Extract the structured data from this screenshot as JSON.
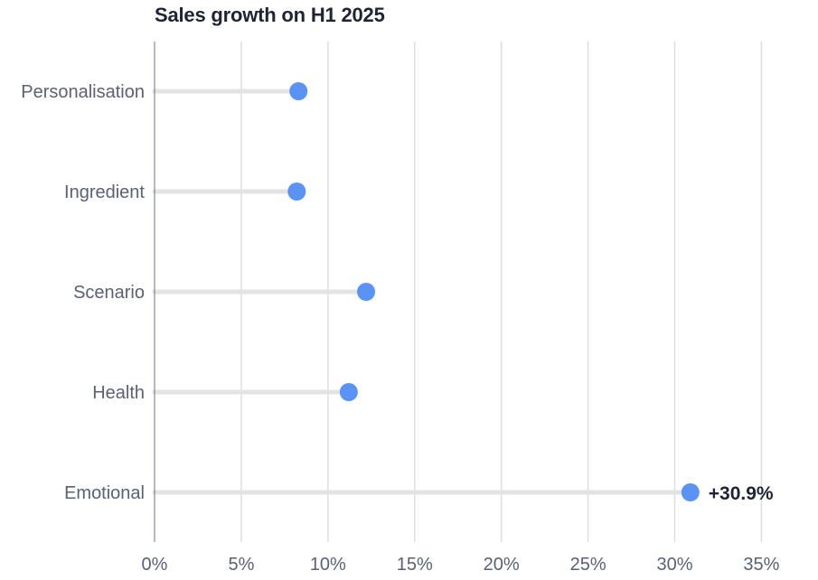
{
  "chart_data": {
    "type": "lollipop",
    "title": "Sales growth on H1 2025",
    "xlabel": "",
    "ylabel": "",
    "categories": [
      "Personalisation",
      "Ingredient",
      "Scenario",
      "Health",
      "Emotional"
    ],
    "values": [
      8.3,
      8.2,
      12.2,
      11.2,
      30.9
    ],
    "highlight": {
      "category": "Emotional",
      "label": "+30.9%"
    },
    "xlim": [
      0,
      38
    ],
    "xticks": [
      0,
      5,
      10,
      15,
      20,
      25,
      30,
      35
    ],
    "xtick_labels": [
      "0%",
      "5%",
      "10%",
      "15%",
      "20%",
      "25%",
      "30%",
      "35%"
    ],
    "grid": "vertical",
    "colors": {
      "dot": "#5b93f5",
      "stem": "#e3e3e3",
      "grid": "#dedede",
      "axis": "#6b7080"
    }
  }
}
